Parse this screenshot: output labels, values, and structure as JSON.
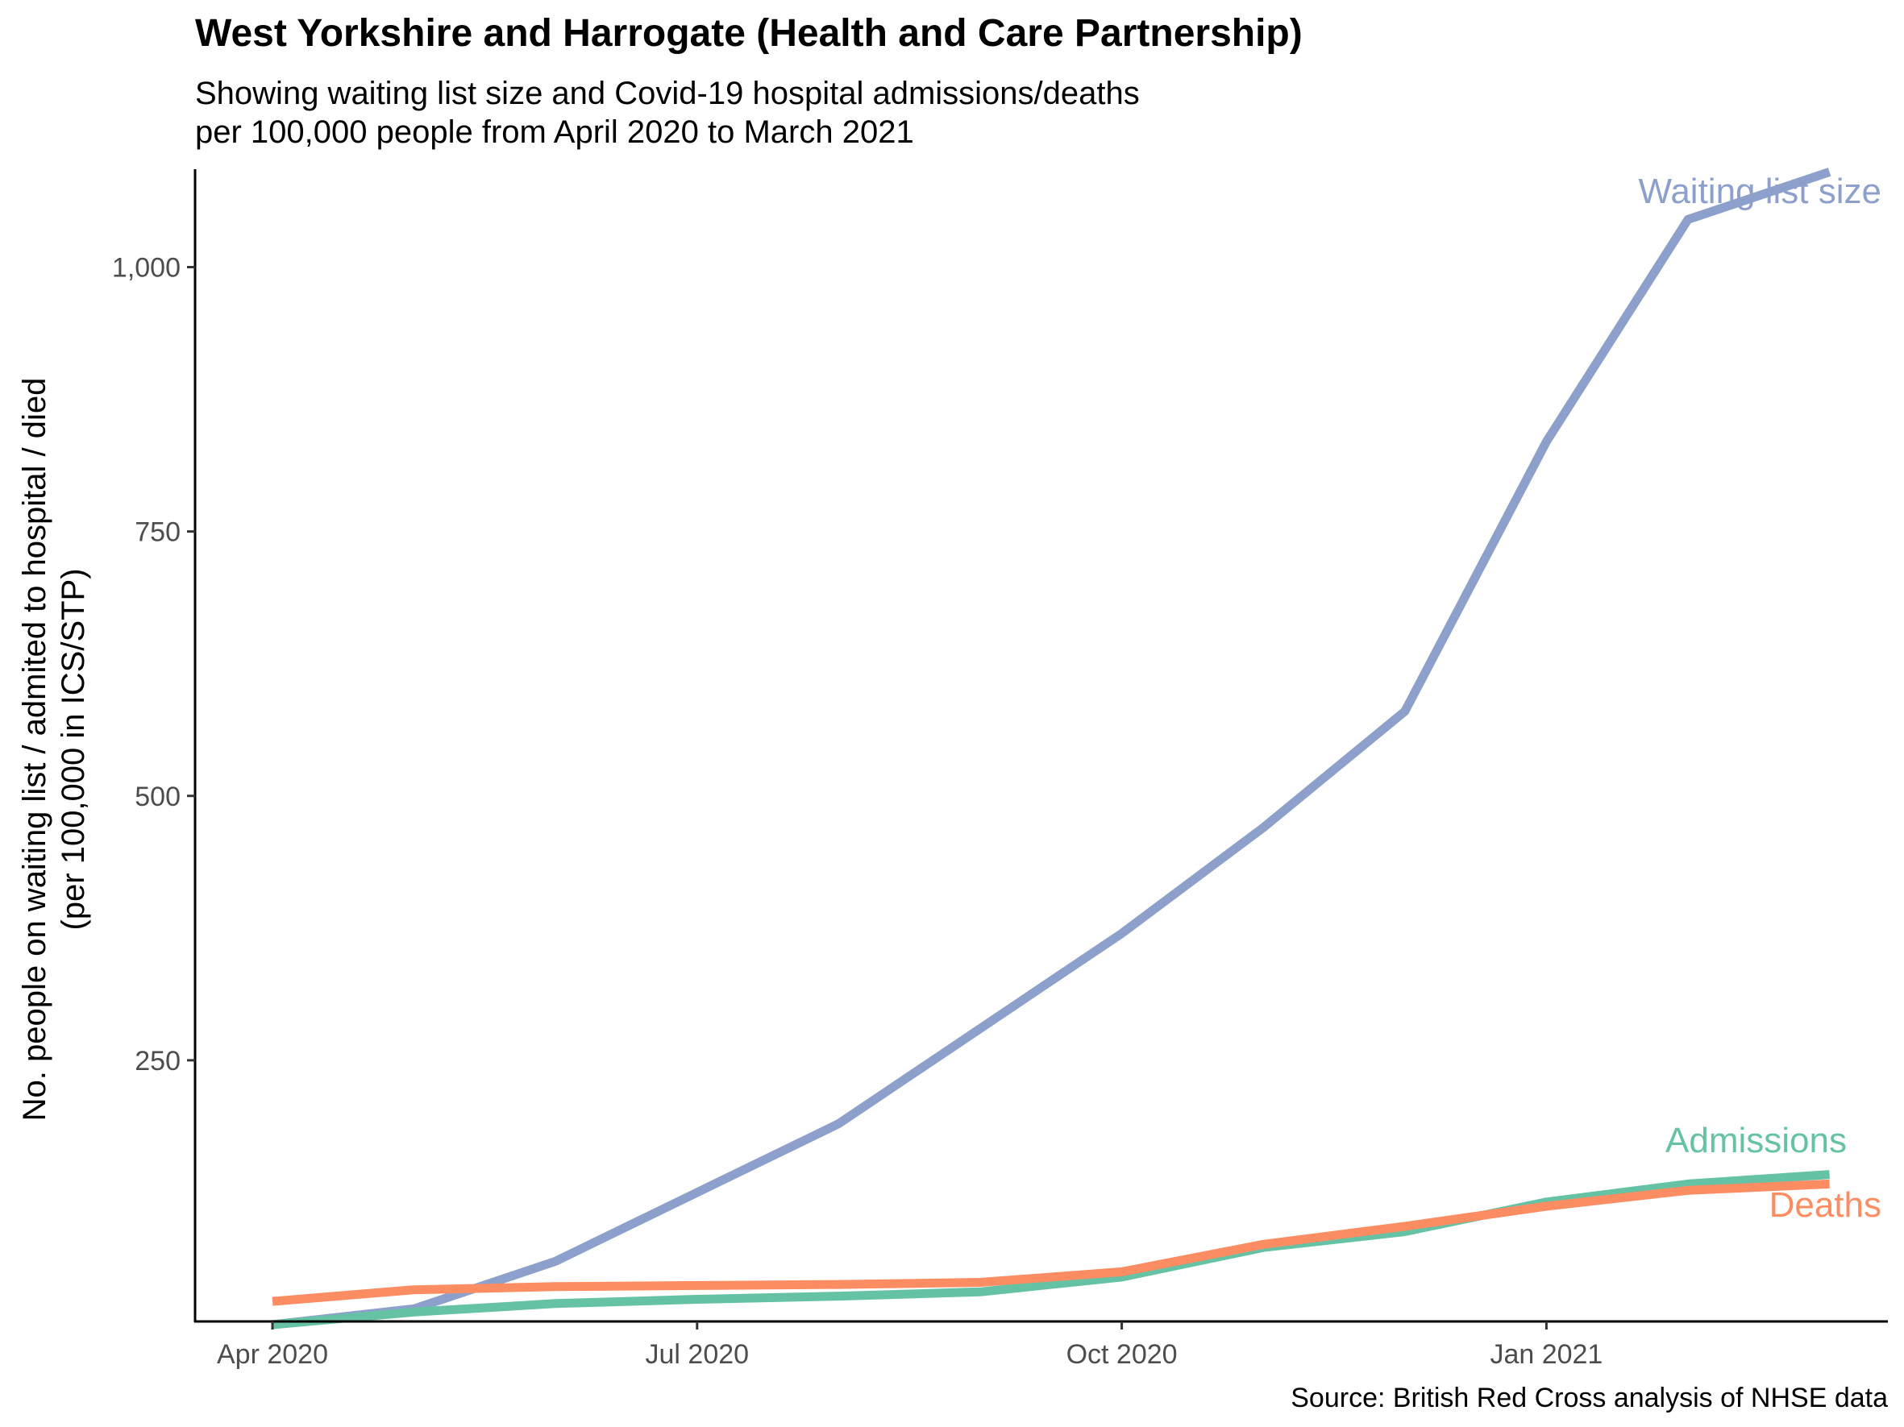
{
  "chart_data": {
    "type": "line",
    "title": "West Yorkshire and Harrogate (Health and Care Partnership)",
    "subtitle_lines": [
      "Showing waiting list size and Covid-19 hospital admissions/deaths",
      "per 100,000 people from April 2020 to March 2021"
    ],
    "caption": "Source: British Red Cross analysis of NHSE data",
    "ylabel_lines": [
      "No. people on waiting list / admited to hospital / died",
      "(per 100,000 in ICS/STP)"
    ],
    "xlabel": "",
    "x": [
      "2020-04",
      "2020-05",
      "2020-06",
      "2020-07",
      "2020-08",
      "2020-09",
      "2020-10",
      "2020-11",
      "2020-12",
      "2021-01",
      "2021-02",
      "2021-03"
    ],
    "xticks": [
      {
        "x": "2020-04",
        "label": "Apr 2020"
      },
      {
        "x": "2020-07",
        "label": "Jul 2020"
      },
      {
        "x": "2020-10",
        "label": "Oct 2020"
      },
      {
        "x": "2021-01",
        "label": "Jan 2021"
      }
    ],
    "yticks": [
      {
        "value": 250,
        "label": "250"
      },
      {
        "value": 500,
        "label": "500"
      },
      {
        "value": 750,
        "label": "750"
      },
      {
        "value": 1000,
        "label": "1,000"
      }
    ],
    "ylim": [
      0,
      1080
    ],
    "grid": false,
    "legend": "none",
    "series": [
      {
        "name": "Waiting list size",
        "color": "#8da0cb",
        "values": [
          0,
          15,
          60,
          125,
          190,
          280,
          370,
          470,
          580,
          835,
          1045,
          1090
        ]
      },
      {
        "name": "Admissions",
        "color": "#66c2a5",
        "values": [
          0,
          12,
          20,
          24,
          27,
          31,
          45,
          73,
          88,
          116,
          133,
          142
        ]
      },
      {
        "name": "Deaths",
        "color": "#fc8d62",
        "values": [
          22,
          33,
          36,
          37,
          38,
          40,
          50,
          76,
          93,
          112,
          127,
          133
        ]
      }
    ]
  }
}
